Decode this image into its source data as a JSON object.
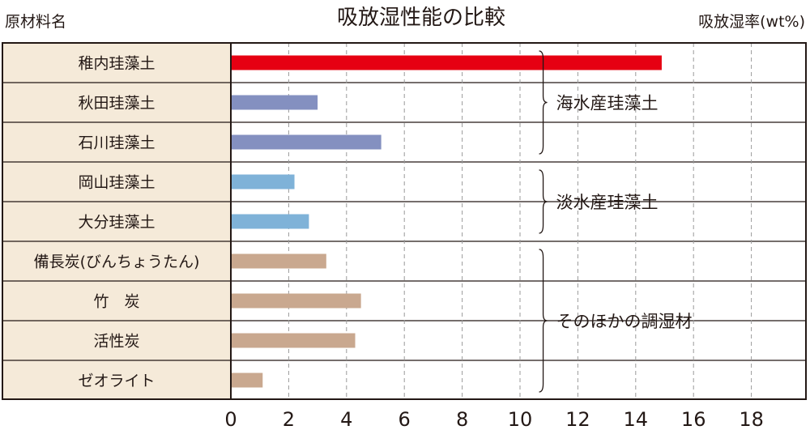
{
  "chart_data": {
    "type": "bar",
    "orientation": "horizontal",
    "title": "吸放湿性能の比較",
    "category_header": "原材料名",
    "value_header": "吸放湿率(wt%)",
    "xlim": [
      0,
      19
    ],
    "xticks": [
      "0",
      "2",
      "4",
      "6",
      "8",
      "10",
      "12",
      "14",
      "16",
      "18"
    ],
    "grid": "vertical dashed",
    "categories": [
      "稚内珪藻土",
      "秋田珪藻土",
      "石川珪藻土",
      "岡山珪藻土",
      "大分珪藻土",
      "備長炭(びんちょうたん)",
      "竹　炭",
      "活性炭",
      "ゼオライト"
    ],
    "values": [
      14.9,
      3.0,
      5.2,
      2.2,
      2.7,
      3.3,
      4.5,
      4.3,
      1.1
    ],
    "bar_colors": [
      "#e60012",
      "#8490c0",
      "#8490c0",
      "#7fb2d8",
      "#7fb2d8",
      "#c9a88f",
      "#c9a88f",
      "#c9a88f",
      "#c9a88f"
    ],
    "label_colors": [
      "#e60012",
      "#231815",
      "#231815",
      "#231815",
      "#231815",
      "#231815",
      "#231815",
      "#231815",
      "#231815"
    ],
    "groups": [
      {
        "label": "海水産珪藻土",
        "from": 0,
        "to": 2
      },
      {
        "label": "淡水産珪藻土",
        "from": 3,
        "to": 4
      },
      {
        "label": "そのほかの調湿材",
        "from": 5,
        "to": 8
      }
    ],
    "colors": {
      "label_panel": "#f5ead9",
      "text": "#231815",
      "grid": "#9a9a9a"
    }
  }
}
